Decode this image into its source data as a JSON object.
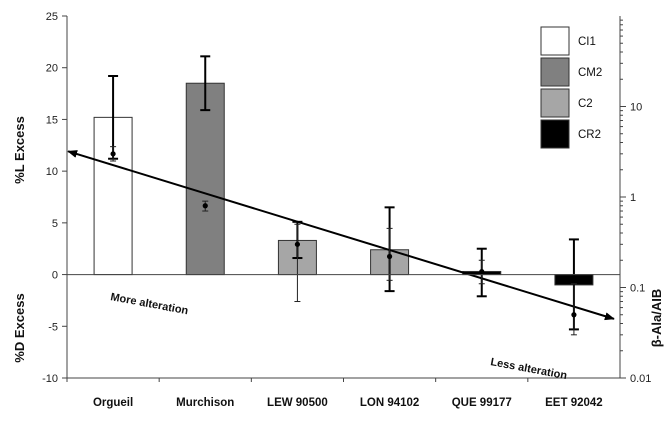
{
  "chart_data": {
    "type": "bar",
    "categories": [
      "Orgueil",
      "Murchison",
      "LEW 90500",
      "LON 94102",
      "QUE 99177",
      "EET 92042"
    ],
    "ylabel_top": "%L Excess",
    "ylabel_bottom": "%D Excess",
    "y2label": "β-Ala/AIB",
    "ylim": [
      -10,
      25
    ],
    "yticks": [
      -10,
      -5,
      0,
      5,
      10,
      15,
      20,
      25
    ],
    "y2lim": [
      0.01,
      100
    ],
    "y2scale": "log",
    "y2ticks": [
      0.01,
      0.1,
      1,
      10
    ],
    "legend_position": "top-right",
    "legend": [
      {
        "label": "CI1",
        "color": "#ffffff"
      },
      {
        "label": "CM2",
        "color": "#808080"
      },
      {
        "label": "C2",
        "color": "#a6a6a6"
      },
      {
        "label": "CR2",
        "color": "#000000"
      }
    ],
    "bars": [
      {
        "category": "Orgueil",
        "group": "CI1",
        "value": 15.2,
        "err_low": 11.2,
        "err_high": 19.2
      },
      {
        "category": "Murchison",
        "group": "CM2",
        "value": 18.5,
        "err_low": 15.9,
        "err_high": 21.1
      },
      {
        "category": "LEW 90500",
        "group": "C2",
        "value": 3.3,
        "err_low": 1.6,
        "err_high": 5.1
      },
      {
        "category": "LON 94102",
        "group": "C2",
        "value": 2.4,
        "err_low": -1.6,
        "err_high": 6.5
      },
      {
        "category": "QUE 99177",
        "group": "CR2",
        "value": 0.3,
        "err_low": -2.1,
        "err_high": 2.5
      },
      {
        "category": "EET 92042",
        "group": "CR2",
        "value": -1.0,
        "err_low": -5.3,
        "err_high": 3.4
      }
    ],
    "ratio_points": [
      {
        "category": "Orgueil",
        "value": 3.0,
        "err_low": 2.5,
        "err_high": 3.6
      },
      {
        "category": "Murchison",
        "value": 0.8,
        "err_low": 0.7,
        "err_high": 0.9
      },
      {
        "category": "LEW 90500",
        "value": 0.3,
        "err_low": 0.07,
        "err_high": 0.5
      },
      {
        "category": "LON 94102",
        "value": 0.22,
        "err_low": 0.12,
        "err_high": 0.45
      },
      {
        "category": "QUE 99177",
        "value": 0.15,
        "err_low": 0.11,
        "err_high": 0.2
      },
      {
        "category": "EET 92042",
        "value": 0.05,
        "err_low": 0.03,
        "err_high": 0.11
      }
    ],
    "trend_arrow": {
      "from": {
        "category": "Orgueil",
        "value": 3.2
      },
      "to": {
        "category": "EET 92042",
        "value": 0.045
      },
      "double_headed": true
    },
    "annotations": [
      {
        "text": "More alteration",
        "near": "Orgueil"
      },
      {
        "text": "Less alteration",
        "near": "EET 92042"
      }
    ]
  }
}
